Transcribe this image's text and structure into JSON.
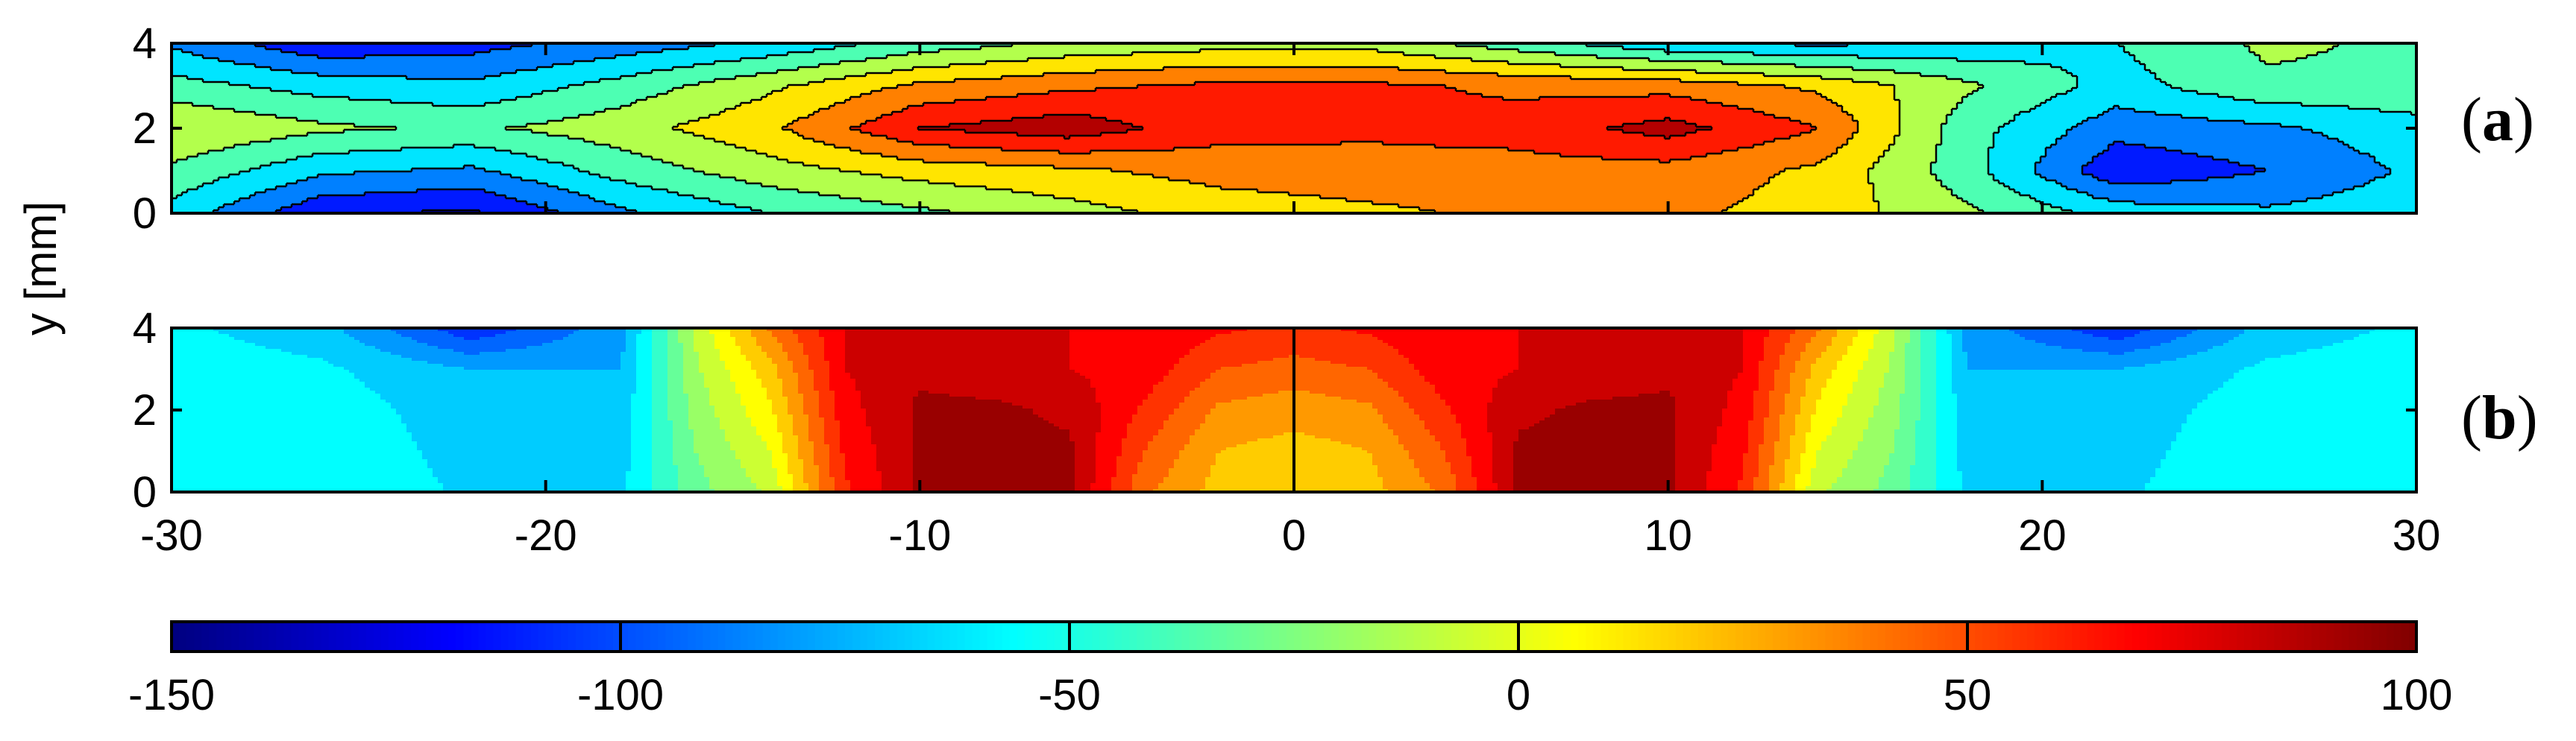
{
  "chart_data": [
    {
      "type": "heatmap",
      "panel_label_open": "(",
      "panel_label_letter": "a",
      "panel_label_close": ")",
      "style": "filled contour with black contour lines",
      "xlim": [
        -30,
        30
      ],
      "ylim": [
        0,
        4
      ],
      "ylabel": "y [mm]",
      "y_ticks": [
        0,
        2,
        4
      ],
      "x": [
        -30,
        -26,
        -22,
        -18,
        -14,
        -10,
        -6,
        -2,
        2,
        6,
        10,
        14,
        18,
        22,
        26,
        30
      ],
      "y": [
        0,
        1,
        2,
        3,
        4
      ],
      "z": [
        [
          -60,
          -120,
          -130,
          -80,
          -50,
          -30,
          -10,
          10,
          20,
          30,
          30,
          15,
          -20,
          -60,
          -70,
          -60
        ],
        [
          -30,
          -70,
          -80,
          -40,
          -10,
          10,
          20,
          35,
          40,
          40,
          40,
          20,
          -40,
          -120,
          -100,
          -70
        ],
        [
          0,
          -20,
          -30,
          -10,
          20,
          75,
          90,
          60,
          55,
          60,
          85,
          50,
          -40,
          -90,
          -80,
          -60
        ],
        [
          -40,
          -60,
          -70,
          -40,
          -5,
          30,
          45,
          55,
          55,
          45,
          40,
          20,
          -20,
          -60,
          -30,
          -30
        ],
        [
          -80,
          -120,
          -110,
          -90,
          -70,
          -40,
          -20,
          -10,
          -10,
          -40,
          -70,
          -80,
          -70,
          -50,
          -20,
          -30
        ]
      ]
    },
    {
      "type": "heatmap",
      "panel_label_open": "(",
      "panel_label_letter": "b",
      "panel_label_close": ")",
      "style": "filled contour, symmetric about x = 0",
      "xlim": [
        -30,
        30
      ],
      "ylim": [
        0,
        4
      ],
      "x_ticks": [
        -30,
        -20,
        -10,
        0,
        10,
        20,
        30
      ],
      "y_ticks": [
        0,
        2,
        4
      ],
      "x": [
        -30,
        -26,
        -22,
        -18,
        -16,
        -14,
        -12,
        -10,
        -8,
        -6,
        -4,
        -2,
        0,
        2,
        4,
        6,
        8,
        10,
        12,
        14,
        16,
        18,
        22,
        26,
        30
      ],
      "y": [
        0,
        1,
        2,
        3,
        4
      ],
      "z": [
        [
          -50,
          -50,
          -65,
          -65,
          -30,
          -10,
          60,
          90,
          90,
          90,
          40,
          20,
          15,
          20,
          40,
          90,
          90,
          90,
          60,
          -10,
          -30,
          -65,
          -65,
          -50,
          -50
        ],
        [
          -50,
          -52,
          -68,
          -68,
          -25,
          0,
          65,
          90,
          90,
          90,
          50,
          25,
          20,
          25,
          50,
          90,
          90,
          90,
          65,
          0,
          -25,
          -68,
          -68,
          -52,
          -50
        ],
        [
          -50,
          -55,
          -70,
          -70,
          -20,
          10,
          70,
          90,
          90,
          85,
          60,
          35,
          30,
          35,
          60,
          85,
          90,
          90,
          70,
          10,
          -20,
          -70,
          -70,
          -55,
          -50
        ],
        [
          -55,
          -60,
          -75,
          -75,
          -15,
          20,
          75,
          85,
          80,
          75,
          70,
          50,
          45,
          50,
          70,
          75,
          80,
          85,
          75,
          20,
          -15,
          -75,
          -75,
          -60,
          -55
        ],
        [
          -60,
          -70,
          -110,
          -80,
          -10,
          40,
          75,
          75,
          75,
          75,
          75,
          65,
          60,
          65,
          75,
          75,
          75,
          75,
          75,
          40,
          -10,
          -80,
          -110,
          -70,
          -60
        ]
      ]
    }
  ],
  "colorbar": {
    "min": -150,
    "max": 100,
    "ticks": [
      -150,
      -100,
      -50,
      0,
      50,
      100
    ],
    "colormap": "jet"
  }
}
